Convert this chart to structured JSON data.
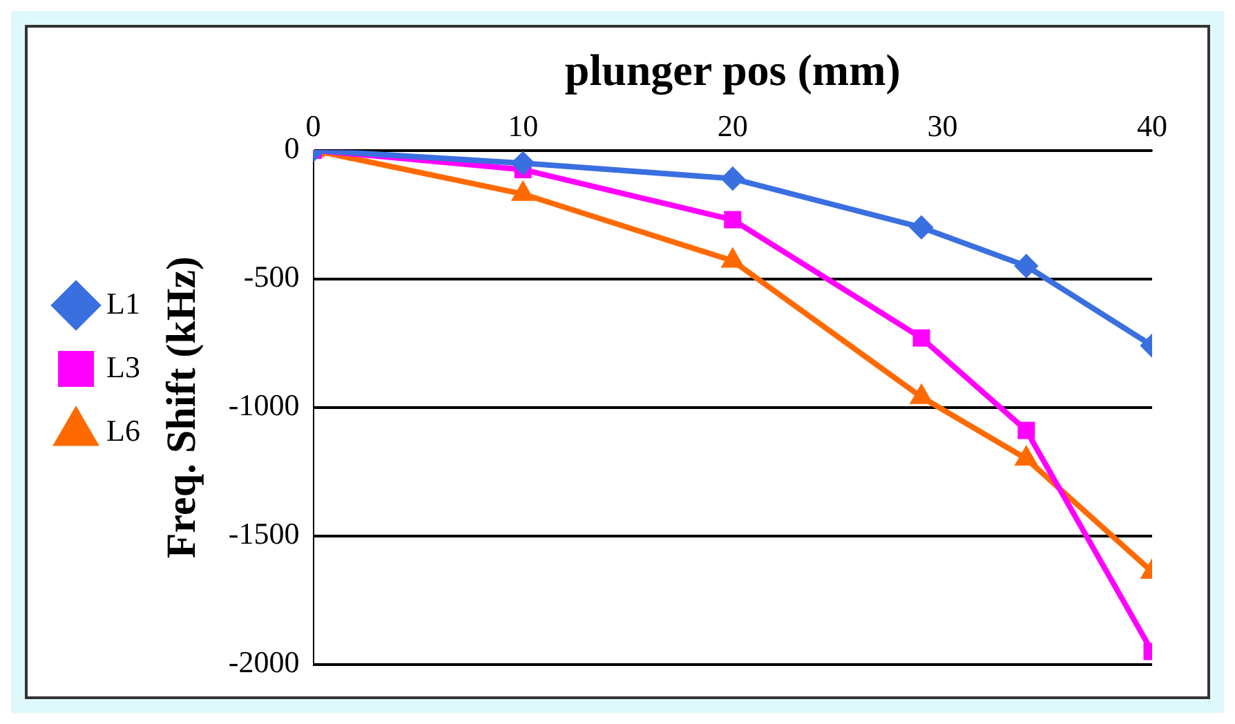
{
  "chart_data": {
    "type": "line",
    "xlabel": "plunger pos (mm)",
    "ylabel": "Freq. Shift (kHz)",
    "x": [
      0,
      10,
      20,
      29,
      34,
      40
    ],
    "xlim": [
      0,
      40
    ],
    "xticks": [
      0,
      10,
      20,
      30,
      40
    ],
    "ylim": [
      -2000,
      0
    ],
    "yticks": [
      -2000,
      -1500,
      -1000,
      -500,
      0
    ],
    "grid": "y",
    "legend": "left",
    "line_style": "solid",
    "series": [
      {
        "name": "L1",
        "color": "#3a6fe0",
        "marker": "diamond",
        "values": [
          0,
          -50,
          -110,
          -300,
          -450,
          -760
        ]
      },
      {
        "name": "L3",
        "color": "#ff00ff",
        "marker": "square",
        "values": [
          0,
          -75,
          -270,
          -730,
          -1090,
          -1950
        ]
      },
      {
        "name": "L6",
        "color": "#ff6a00",
        "marker": "triangle",
        "values": [
          0,
          -170,
          -430,
          -960,
          -1200,
          -1640
        ]
      }
    ]
  }
}
